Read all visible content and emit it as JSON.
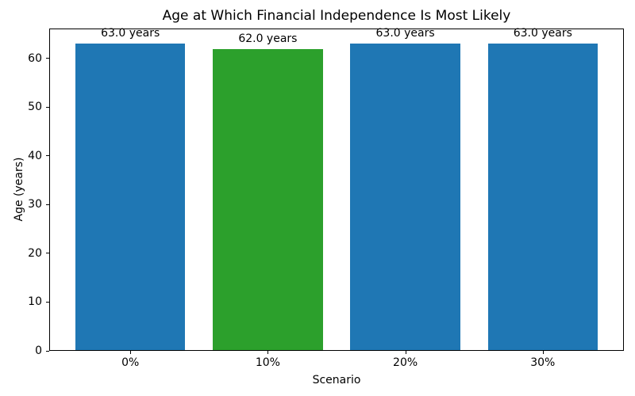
{
  "chart_data": {
    "type": "bar",
    "title": "Age at Which Financial Independence Is Most Likely",
    "xlabel": "Scenario",
    "ylabel": "Age (years)",
    "categories": [
      "0%",
      "10%",
      "20%",
      "30%"
    ],
    "values": [
      63.0,
      62.0,
      63.0,
      63.0
    ],
    "bar_labels": [
      "63.0 years",
      "62.0 years",
      "63.0 years",
      "63.0 years"
    ],
    "bar_colors": [
      "#1f77b4",
      "#2ca02c",
      "#1f77b4",
      "#1f77b4"
    ],
    "ylim": [
      0,
      66.15
    ],
    "yticks": [
      0,
      10,
      20,
      30,
      40,
      50,
      60
    ],
    "grid": false,
    "legend_position": "none",
    "background_color": "#ffffff",
    "axis_color": "#000000"
  }
}
